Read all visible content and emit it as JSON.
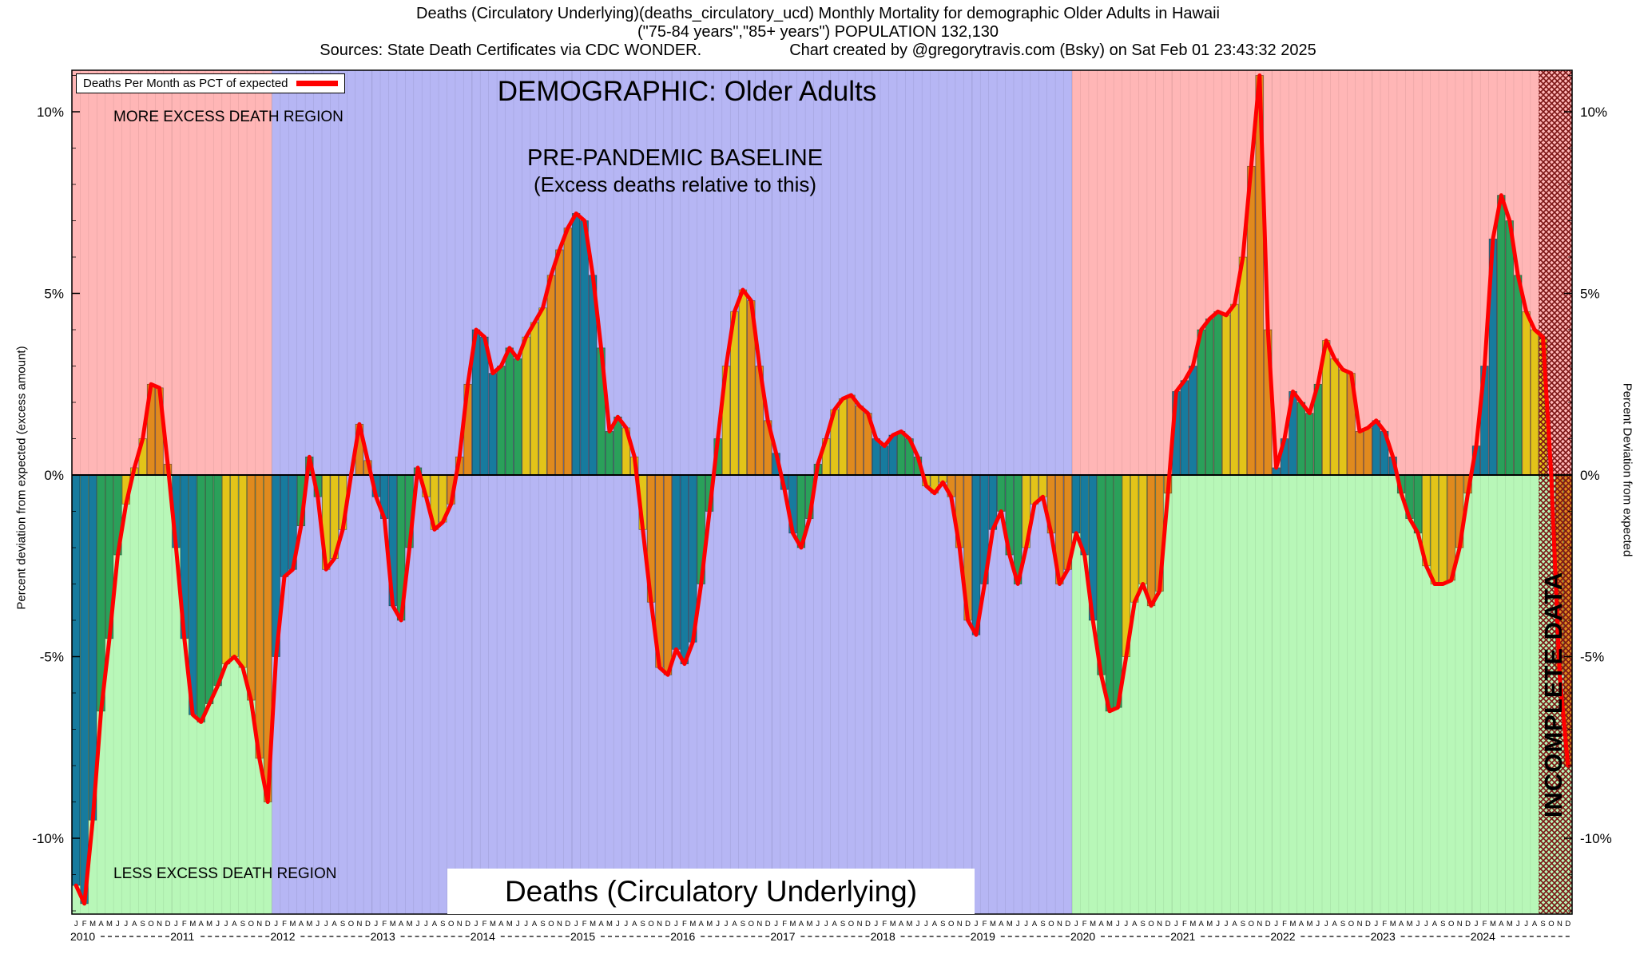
{
  "header": {
    "line1": "Deaths (Circulatory Underlying)(deaths_circulatory_ucd) Monthly Mortality for demographic Older Adults in Hawaii",
    "line2": "(\"75-84 years\",\"85+ years\") POPULATION 132,130",
    "line3a": "Sources: State Death Certificates via CDC WONDER.",
    "line3b": "Chart created by @gregorytravis.com (Bsky) on Sat Feb 01 23:43:32 2025"
  },
  "legend": {
    "label": "Deaths Per Month as PCT of expected",
    "line_color": "#ff0000"
  },
  "annotations": {
    "demographic": "DEMOGRAPHIC: Older Adults",
    "baseline_1": "PRE-PANDEMIC BASELINE",
    "baseline_2": "(Excess deaths relative to this)",
    "more_excess": "MORE EXCESS DEATH REGION",
    "less_excess": "LESS EXCESS DEATH REGION",
    "bottom_label": "Deaths (Circulatory Underlying)",
    "incomplete": "INCOMPLETE DATA"
  },
  "axes": {
    "left_label": "Percent deviation from expected  (excess amount)",
    "right_label": "Percent Deviation from expected",
    "y_ticks": [
      10,
      5,
      0,
      -5,
      -10
    ],
    "y_tick_labels": [
      "10%",
      "5%",
      "0%",
      "-5%",
      "-10%"
    ],
    "ylim": [
      -12.2,
      11.2
    ]
  },
  "colors": {
    "line": "#ff0000",
    "q1_teal": "#177b9e",
    "q2_green": "#2aa05a",
    "q3_yellow": "#e3c419",
    "q4_orange": "#e08a1e",
    "more_region": "#ffb6b6",
    "less_region": "#b8f7b8",
    "baseline_region": "#b6b6f4",
    "hatch": "#7a1414"
  },
  "chart_data": {
    "type": "bar+line",
    "title": "Deaths (Circulatory Underlying) — monthly percent deviation from expected",
    "x_unit": "month",
    "y_unit": "percent deviation from expected",
    "start": "2010-01",
    "end": "2024-12",
    "years": [
      2010,
      2011,
      2012,
      2013,
      2014,
      2015,
      2016,
      2017,
      2018,
      2019,
      2020,
      2021,
      2022,
      2023,
      2024
    ],
    "month_letters": [
      "J",
      "F",
      "M",
      "A",
      "M",
      "J",
      "J",
      "A",
      "S",
      "O",
      "N",
      "D"
    ],
    "baseline_start_index": 24,
    "baseline_end_index": 120,
    "incomplete_start_index": 176,
    "series": [
      {
        "name": "Deaths Per Month as PCT of expected",
        "values": [
          -11.3,
          -11.8,
          -9.5,
          -6.5,
          -4.5,
          -2.2,
          -0.8,
          0.2,
          1.0,
          2.5,
          2.4,
          0.3,
          -2.0,
          -4.5,
          -6.6,
          -6.8,
          -6.3,
          -5.8,
          -5.2,
          -5.0,
          -5.3,
          -6.2,
          -7.8,
          -9.0,
          -5.0,
          -2.8,
          -2.6,
          -1.4,
          0.5,
          -0.6,
          -2.6,
          -2.3,
          -1.5,
          0.0,
          1.4,
          0.4,
          -0.6,
          -1.2,
          -3.6,
          -4.0,
          -2.0,
          0.2,
          -0.6,
          -1.5,
          -1.3,
          -0.8,
          0.5,
          2.5,
          4.0,
          3.8,
          2.8,
          3.0,
          3.5,
          3.2,
          3.8,
          4.2,
          4.6,
          5.5,
          6.2,
          6.8,
          7.2,
          7.0,
          5.5,
          3.5,
          1.2,
          1.6,
          1.3,
          0.5,
          -1.5,
          -3.5,
          -5.3,
          -5.5,
          -4.8,
          -5.2,
          -4.6,
          -3.0,
          -1.0,
          1.0,
          3.0,
          4.5,
          5.1,
          4.8,
          3.0,
          1.5,
          0.6,
          -0.4,
          -1.6,
          -2.0,
          -1.2,
          0.3,
          1.0,
          1.8,
          2.1,
          2.2,
          1.9,
          1.7,
          1.0,
          0.8,
          1.1,
          1.2,
          1.0,
          0.5,
          -0.3,
          -0.5,
          -0.2,
          -0.6,
          -2.0,
          -4.0,
          -4.4,
          -3.0,
          -1.5,
          -1.0,
          -2.2,
          -3.0,
          -2.0,
          -0.8,
          -0.6,
          -1.6,
          -3.0,
          -2.6,
          -1.6,
          -2.2,
          -4.0,
          -5.5,
          -6.5,
          -6.4,
          -5.0,
          -3.5,
          -3.0,
          -3.6,
          -3.2,
          -0.5,
          2.3,
          2.6,
          3.0,
          4.0,
          4.3,
          4.5,
          4.4,
          4.7,
          6.0,
          8.5,
          11.0,
          4.0,
          0.2,
          1.0,
          2.3,
          2.0,
          1.7,
          2.5,
          3.7,
          3.2,
          2.9,
          2.8,
          1.2,
          1.3,
          1.5,
          1.2,
          0.5,
          -0.5,
          -1.2,
          -1.6,
          -2.5,
          -3.0,
          -3.0,
          -2.9,
          -2.0,
          -0.5,
          0.8,
          3.0,
          6.5,
          7.7,
          7.0,
          5.5,
          4.5,
          4.0,
          3.8,
          0.0,
          -5.5,
          -8.0
        ]
      }
    ]
  }
}
